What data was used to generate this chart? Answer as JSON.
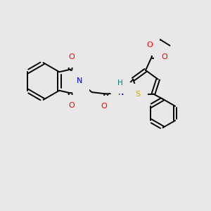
{
  "bg_color": "#e8e8e8",
  "figsize": [
    3.0,
    3.0
  ],
  "dpi": 100,
  "atom_colors": {
    "N": "#0000ff",
    "O": "#ff0000",
    "S": "#ccaa00",
    "H": "#008080",
    "C": "#000000"
  },
  "bond_color": "#000000",
  "bond_width": 1.4,
  "xlim": [
    0,
    10
  ],
  "ylim": [
    0,
    10
  ]
}
